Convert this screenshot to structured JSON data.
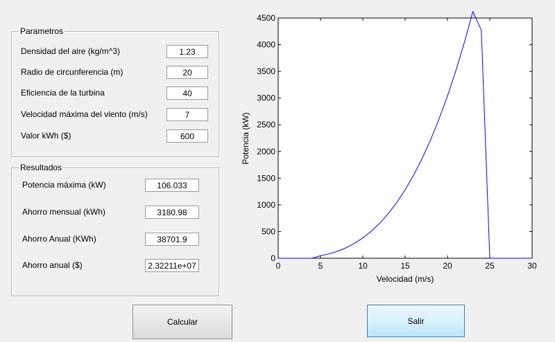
{
  "parametros": {
    "title": "Parametros",
    "fields": [
      {
        "label": "Densidad del aire (kg/m^3)",
        "value": "1.23"
      },
      {
        "label": "Radio de circunferencia (m)",
        "value": "20"
      },
      {
        "label": "Eficiencia de la turbina",
        "value": "40"
      },
      {
        "label": "Velocidad máxima del viento (m/s)",
        "value": "7"
      },
      {
        "label": "Valor kWh ($)",
        "value": "600"
      }
    ]
  },
  "resultados": {
    "title": "Resultados",
    "fields": [
      {
        "label": "Potencia máxima (kW)",
        "value": "106.033"
      },
      {
        "label": "Ahorro mensual (kWh)",
        "value": "3180.98"
      },
      {
        "label": "Ahorro Anual (KWh)",
        "value": "38701.9"
      },
      {
        "label": "Ahorro anual ($)",
        "value": "2.32211e+07"
      }
    ]
  },
  "buttons": {
    "calcular": "Calcular",
    "salir": "Salir"
  },
  "chart_data": {
    "type": "line",
    "title": "",
    "xlabel": "Velocidad (m/s)",
    "ylabel": "Potencia (kW)",
    "xlim": [
      0,
      30
    ],
    "ylim": [
      0,
      4500
    ],
    "xticks": [
      0,
      5,
      10,
      15,
      20,
      25,
      30
    ],
    "yticks": [
      0,
      500,
      1000,
      1500,
      2000,
      2500,
      3000,
      3500,
      4000,
      4500
    ],
    "grid": false,
    "line_color": "#0000ff",
    "series": [
      {
        "x": [
          0,
          4,
          5,
          6,
          7,
          8,
          9,
          10,
          11,
          12,
          13,
          14,
          15,
          16,
          17,
          18,
          19,
          20,
          21,
          22,
          23,
          24,
          25,
          30
        ],
        "y": [
          0,
          0,
          47,
          82,
          130,
          195,
          277,
          380,
          506,
          656,
          835,
          1042,
          1282,
          1556,
          1866,
          2215,
          2605,
          3038,
          3517,
          4044,
          4620,
          4270,
          0,
          0
        ]
      }
    ]
  }
}
